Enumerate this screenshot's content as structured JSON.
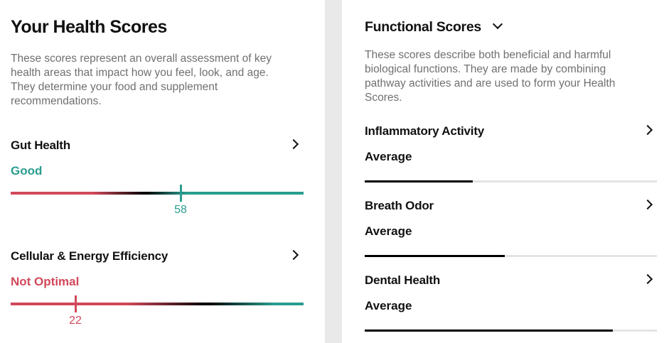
{
  "colors": {
    "good": "#2a9d8f",
    "bad": "#d1495b",
    "mid": "#000000"
  },
  "health": {
    "title": "Your Health Scores",
    "description": "These scores represent an overall assessment of key health areas that impact how you feel, look, and age. They determine your food and supplement recommendations.",
    "scores": [
      {
        "name": "Gut Health",
        "status": "Good",
        "value": "58",
        "level": 0.58,
        "tone": "good"
      },
      {
        "name": "Cellular & Energy Efficiency",
        "status": "Not Optimal",
        "value": "22",
        "level": 0.22,
        "tone": "bad"
      }
    ]
  },
  "functional": {
    "title": "Functional Scores",
    "description": "These scores describe both beneficial and harmful biological functions. They are made by combining pathway activities and are used to form your Health Scores.",
    "items": [
      {
        "name": "Inflammatory Activity",
        "status": "Average",
        "level": 0.37
      },
      {
        "name": "Breath Odor",
        "status": "Average",
        "level": 0.48
      },
      {
        "name": "Dental Health",
        "status": "Average",
        "level": 0.85
      }
    ]
  }
}
